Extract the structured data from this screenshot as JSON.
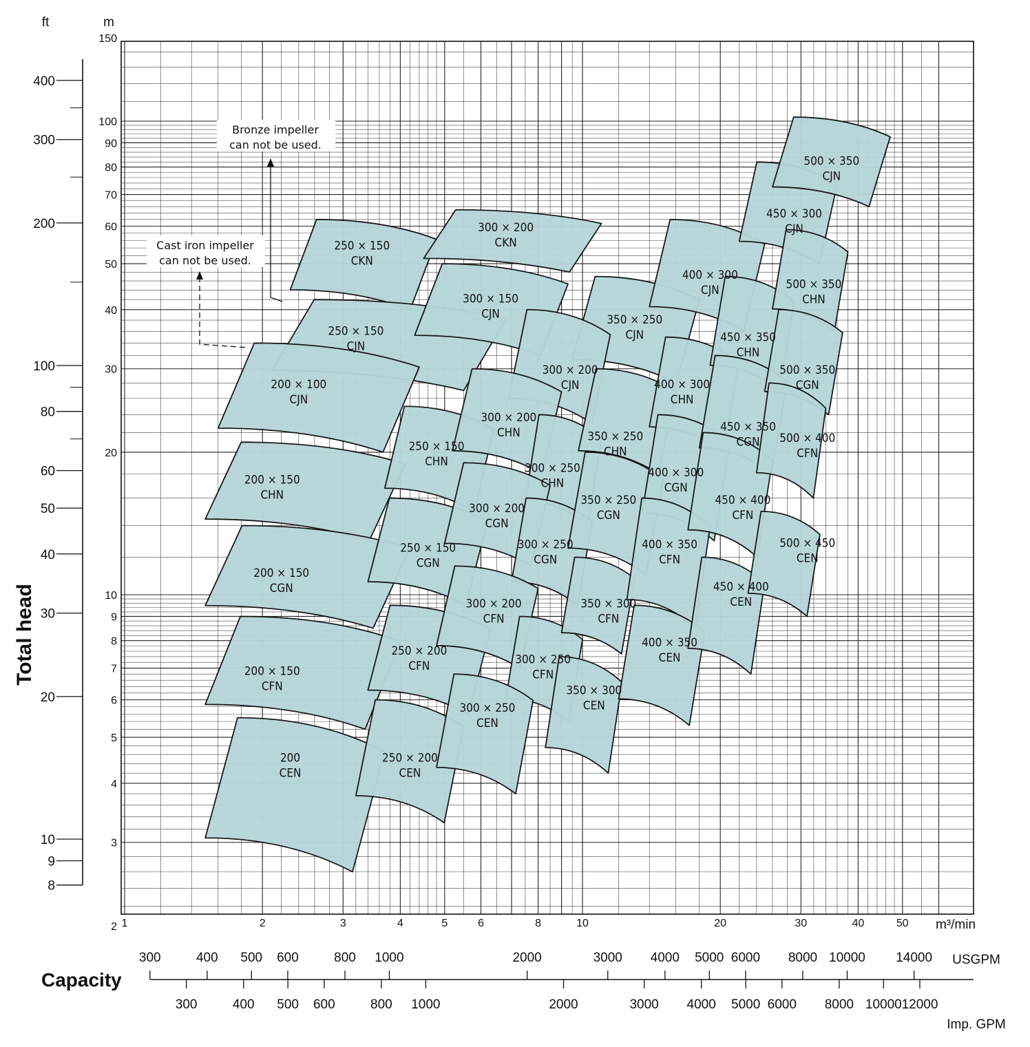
{
  "chart_data": {
    "type": "area",
    "title": "",
    "xlabel": "Capacity",
    "ylabel": "Total head",
    "x_unit": "m³/min",
    "y_unit": "m",
    "y_secondary_unit": "ft",
    "x_scale": "log",
    "y_scale": "log",
    "xlim": [
      1,
      60
    ],
    "ylim": [
      1.8,
      150
    ],
    "grid": true,
    "x_ticks": [
      "1",
      "2",
      "3",
      "4",
      "5",
      "6",
      "8",
      "10",
      "20",
      "30",
      "40",
      "50"
    ],
    "y_ticks_m": [
      "2",
      "3",
      "4",
      "5",
      "6",
      "7",
      "8",
      "9",
      "10",
      "20",
      "30",
      "40",
      "50",
      "60",
      "70",
      "80",
      "90",
      "100",
      "150"
    ],
    "y_ticks_ft": [
      "8",
      "9",
      "10",
      "20",
      "30",
      "40",
      "50",
      "60",
      "80",
      "100",
      "200",
      "300",
      "400"
    ],
    "usgpm_ticks": [
      "300",
      "400",
      "500",
      "600",
      "800",
      "1000",
      "2000",
      "3000",
      "4000",
      "5000",
      "6000",
      "8000",
      "10000",
      "14000"
    ],
    "usgpm_label": "USGPM",
    "impgpm_ticks": [
      "300",
      "400",
      "500",
      "600",
      "800",
      "1000",
      "2000",
      "3000",
      "4000",
      "5000",
      "6000",
      "8000",
      "10000",
      "12000"
    ],
    "impgpm_label": "Imp. GPM",
    "notes": [
      {
        "lines": [
          "Bronze impeller",
          "can not be used."
        ]
      },
      {
        "lines": [
          "Cast iron impeller",
          "can not be used."
        ]
      }
    ],
    "models": [
      {
        "name": "250 × 150 CKN",
        "q": [
          2.3,
          4.8
        ],
        "h": [
          40,
          62
        ],
        "center": [
          3.3,
          53
        ]
      },
      {
        "name": "300 × 200 CKN",
        "q": [
          4.5,
          11
        ],
        "h": [
          48,
          65
        ],
        "center": [
          6.8,
          58
        ]
      },
      {
        "name": "250 × 150 CJN",
        "q": [
          2.1,
          6.8
        ],
        "h": [
          27,
          42
        ],
        "center": [
          3.2,
          35
        ]
      },
      {
        "name": "300 × 150 CJN",
        "q": [
          4.3,
          9.3
        ],
        "h": [
          32,
          50
        ],
        "center": [
          6.3,
          41
        ]
      },
      {
        "name": "200 × 100 CJN",
        "q": [
          1.6,
          4.4
        ],
        "h": [
          20,
          34
        ],
        "center": [
          2.4,
          27
        ]
      },
      {
        "name": "350 × 250 CJN",
        "q": [
          9.5,
          18
        ],
        "h": [
          28,
          47
        ],
        "center": [
          13,
          37
        ]
      },
      {
        "name": "400 × 300 CJN",
        "q": [
          14,
          25
        ],
        "h": [
          36,
          62
        ],
        "center": [
          19,
          46
        ]
      },
      {
        "name": "450 × 300 CJN",
        "q": [
          22,
          36
        ],
        "h": [
          50,
          82
        ],
        "center": [
          29,
          62
        ]
      },
      {
        "name": "500 × 350 CJN",
        "q": [
          26,
          47
        ],
        "h": [
          66,
          102
        ],
        "center": [
          35,
          80
        ]
      },
      {
        "name": "300 × 200 CJN",
        "q": [
          6.9,
          11.5
        ],
        "h": [
          23,
          40
        ],
        "center": [
          9.4,
          29
        ]
      },
      {
        "name": "200 × 150 CHN",
        "q": [
          1.5,
          4.1
        ],
        "h": [
          13,
          21
        ],
        "center": [
          2.1,
          17
        ]
      },
      {
        "name": "250 × 150 CHN",
        "q": [
          3.7,
          6.4
        ],
        "h": [
          15,
          25
        ],
        "center": [
          4.8,
          20
        ]
      },
      {
        "name": "300 × 200 CHN",
        "q": [
          5.2,
          9
        ],
        "h": [
          18,
          30
        ],
        "center": [
          6.9,
          23
        ]
      },
      {
        "name": "300 × 250 CHN",
        "q": [
          7.5,
          11
        ],
        "h": [
          14,
          24
        ],
        "center": [
          8.6,
          18
        ]
      },
      {
        "name": "350 × 250 CHN",
        "q": [
          9.8,
          16
        ],
        "h": [
          18,
          30
        ],
        "center": [
          11.8,
          21
        ]
      },
      {
        "name": "400 × 300 CHN",
        "q": [
          14,
          22
        ],
        "h": [
          20,
          35
        ],
        "center": [
          16.5,
          27
        ]
      },
      {
        "name": "450 × 350 CHN",
        "q": [
          19,
          29
        ],
        "h": [
          27,
          47
        ],
        "center": [
          23,
          34
        ]
      },
      {
        "name": "500 × 350 CHN",
        "q": [
          26,
          38
        ],
        "h": [
          36,
          59
        ],
        "center": [
          32,
          44
        ]
      },
      {
        "name": "200 × 150 CGN",
        "q": [
          1.5,
          4.2
        ],
        "h": [
          8.5,
          14
        ],
        "center": [
          2.2,
          10.8
        ]
      },
      {
        "name": "250 × 150 CGN",
        "q": [
          3.4,
          6.2
        ],
        "h": [
          9.5,
          16
        ],
        "center": [
          4.6,
          12.2
        ]
      },
      {
        "name": "300 × 200 CGN",
        "q": [
          5,
          8.5
        ],
        "h": [
          11.5,
          19
        ],
        "center": [
          6.5,
          14.8
        ]
      },
      {
        "name": "300 × 250 CGN",
        "q": [
          7,
          10.5
        ],
        "h": [
          9.5,
          16
        ],
        "center": [
          8.3,
          12.4
        ]
      },
      {
        "name": "350 × 250 CGN",
        "q": [
          9.3,
          15
        ],
        "h": [
          11,
          20
        ],
        "center": [
          11.4,
          15.4
        ]
      },
      {
        "name": "400 × 300 CGN",
        "q": [
          13.5,
          21
        ],
        "h": [
          13,
          24
        ],
        "center": [
          16,
          17.6
        ]
      },
      {
        "name": "450 × 350 CGN",
        "q": [
          18,
          28
        ],
        "h": [
          18,
          32
        ],
        "center": [
          23,
          22
        ]
      },
      {
        "name": "500 × 350 CGN",
        "q": [
          25,
          37
        ],
        "h": [
          24,
          40
        ],
        "center": [
          31,
          29
        ]
      },
      {
        "name": "200 × 150 CFN",
        "q": [
          1.5,
          4
        ],
        "h": [
          5.2,
          9
        ],
        "center": [
          2.1,
          6.7
        ]
      },
      {
        "name": "250 × 200 CFN",
        "q": [
          3.4,
          6.3
        ],
        "h": [
          5.6,
          9.5
        ],
        "center": [
          4.4,
          7.4
        ]
      },
      {
        "name": "300 × 200 CFN",
        "q": [
          4.8,
          8
        ],
        "h": [
          7,
          11.5
        ],
        "center": [
          6.4,
          9.3
        ]
      },
      {
        "name": "300 × 250 CFN",
        "q": [
          6.8,
          10
        ],
        "h": [
          5.4,
          9
        ],
        "center": [
          8.2,
          7.1
        ]
      },
      {
        "name": "350 × 300 CFN",
        "q": [
          9,
          13
        ],
        "h": [
          7.5,
          12
        ],
        "center": [
          11.4,
          9.3
        ]
      },
      {
        "name": "400 × 350 CFN",
        "q": [
          12.5,
          19
        ],
        "h": [
          8.5,
          16
        ],
        "center": [
          15.5,
          12.4
        ]
      },
      {
        "name": "450 × 400 CFN",
        "q": [
          17,
          26
        ],
        "h": [
          12,
          22
        ],
        "center": [
          22.4,
          15.4
        ]
      },
      {
        "name": "500 × 400 CFN",
        "q": [
          24,
          34
        ],
        "h": [
          16,
          28
        ],
        "center": [
          31,
          20.8
        ]
      },
      {
        "name": "200 CEN",
        "q": [
          1.5,
          3.7
        ],
        "h": [
          2.6,
          5.5
        ],
        "center": [
          2.3,
          4.4
        ]
      },
      {
        "name": "250 × 200 CEN",
        "q": [
          3.2,
          5.5
        ],
        "h": [
          3.3,
          6
        ],
        "center": [
          4.2,
          4.4
        ]
      },
      {
        "name": "300 × 250 CEN",
        "q": [
          4.8,
          7.8
        ],
        "h": [
          3.8,
          6.8
        ],
        "center": [
          6.2,
          5.6
        ]
      },
      {
        "name": "350 × 300 CEN",
        "q": [
          8.3,
          12.2
        ],
        "h": [
          4.2,
          7.4
        ],
        "center": [
          10.6,
          6.1
        ]
      },
      {
        "name": "400 × 350 CEN",
        "q": [
          12,
          18.5
        ],
        "h": [
          5.3,
          9.5
        ],
        "center": [
          15.5,
          7.7
        ]
      },
      {
        "name": "450 × 400 CEN",
        "q": [
          17,
          25
        ],
        "h": [
          6.8,
          12
        ],
        "center": [
          22.2,
          10.1
        ]
      },
      {
        "name": "500 × 450 CEN",
        "q": [
          23,
          33
        ],
        "h": [
          9,
          15
        ],
        "center": [
          31,
          12.5
        ]
      }
    ]
  }
}
